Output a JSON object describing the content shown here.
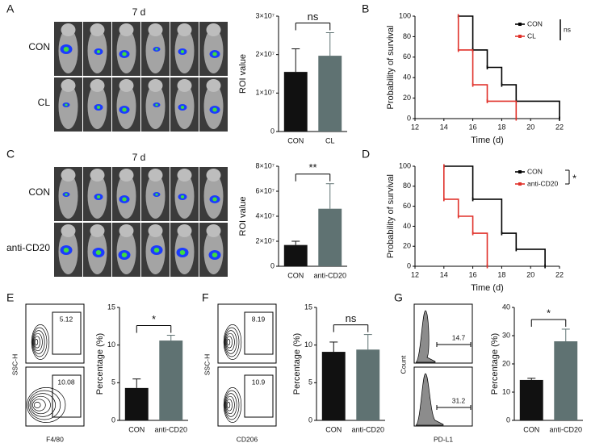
{
  "figure": {
    "panel_labels": [
      "A",
      "B",
      "C",
      "D",
      "E",
      "F",
      "G"
    ],
    "imaging": [
      {
        "time": "7 d",
        "groups": [
          "CON",
          "CL"
        ]
      },
      {
        "time": "7 d",
        "groups": [
          "CON",
          "anti-CD20"
        ]
      }
    ],
    "flow": [
      {
        "ylabel": "SSC-H",
        "xlabel": "F4/80",
        "gates": [
          5.12,
          10.08
        ]
      },
      {
        "ylabel": "SSC-H",
        "xlabel": "CD206",
        "gates": [
          8.19,
          10.9
        ]
      },
      {
        "ylabel": "Count",
        "xlabel": "PD-L1",
        "gates": [
          14.7,
          31.2
        ]
      }
    ]
  },
  "chart_data": [
    {
      "type": "bar",
      "ylabel": "ROI value",
      "categories": [
        "CON",
        "CL"
      ],
      "values": [
        15500000,
        19700000
      ],
      "errors": [
        6000000,
        6000000
      ],
      "colors": [
        "#111111",
        "#5f7272"
      ],
      "ylim": [
        0,
        30000000
      ],
      "yticks": [
        0,
        {
          "value": 10000000,
          "label": "1×10⁷"
        },
        {
          "value": 20000000,
          "label": "2×10⁷"
        },
        {
          "value": 30000000,
          "label": "3×10⁷"
        }
      ],
      "significance": "ns"
    },
    {
      "type": "step",
      "xlabel": "Time (d)",
      "ylabel": "Probability of survival",
      "xlim": [
        12,
        22
      ],
      "xticks": [
        12,
        14,
        16,
        18,
        20,
        22
      ],
      "ylim": [
        0,
        100
      ],
      "yticks": [
        0,
        20,
        40,
        60,
        80,
        100
      ],
      "series": [
        {
          "name": "CON",
          "color": "#000000",
          "x": [
            15,
            16,
            17,
            18,
            19,
            22
          ],
          "values": [
            100,
            67,
            50,
            33,
            17,
            0
          ]
        },
        {
          "name": "CL",
          "color": "#e0312a",
          "x": [
            15,
            15,
            16,
            17,
            19
          ],
          "values": [
            100,
            67,
            33,
            17,
            0
          ]
        }
      ],
      "significance": "ns"
    },
    {
      "type": "bar",
      "ylabel": "ROI value",
      "categories": [
        "CON",
        "anti-CD20"
      ],
      "values": [
        17000000,
        46000000
      ],
      "errors": [
        3000000,
        20000000
      ],
      "colors": [
        "#111111",
        "#5f7272"
      ],
      "ylim": [
        0,
        80000000
      ],
      "yticks": [
        0,
        {
          "value": 20000000,
          "label": "2×10⁷"
        },
        {
          "value": 40000000,
          "label": "4×10⁷"
        },
        {
          "value": 60000000,
          "label": "6×10⁷"
        },
        {
          "value": 80000000,
          "label": "8×10⁷"
        }
      ],
      "significance": "**"
    },
    {
      "type": "step",
      "xlabel": "Time (d)",
      "ylabel": "Probability of survival",
      "xlim": [
        12,
        22
      ],
      "xticks": [
        12,
        14,
        16,
        18,
        20,
        22
      ],
      "ylim": [
        0,
        100
      ],
      "yticks": [
        0,
        20,
        40,
        60,
        80,
        100
      ],
      "series": [
        {
          "name": "CON",
          "color": "#000000",
          "x": [
            14,
            16,
            18,
            19,
            21
          ],
          "values": [
            100,
            67,
            33,
            17,
            0
          ]
        },
        {
          "name": "anti-CD20",
          "color": "#e0312a",
          "x": [
            14,
            14,
            15,
            16,
            17
          ],
          "values": [
            100,
            67,
            50,
            33,
            0
          ]
        }
      ],
      "significance": "*"
    },
    {
      "type": "bar",
      "ylabel": "Percentage (%)",
      "categories": [
        "CON",
        "anti-CD20"
      ],
      "values": [
        4.3,
        10.6
      ],
      "errors": [
        1.2,
        0.7
      ],
      "colors": [
        "#111111",
        "#5f7272"
      ],
      "ylim": [
        0,
        15
      ],
      "yticks": [
        0,
        5,
        10,
        15
      ],
      "significance": "*"
    },
    {
      "type": "bar",
      "ylabel": "Percentage (%)",
      "categories": [
        "CON",
        "anti-CD20"
      ],
      "values": [
        9.1,
        9.4
      ],
      "errors": [
        1.3,
        2.0
      ],
      "colors": [
        "#111111",
        "#5f7272"
      ],
      "ylim": [
        0,
        15
      ],
      "yticks": [
        0,
        5,
        10,
        15
      ],
      "significance": "ns"
    },
    {
      "type": "bar",
      "ylabel": "Percentage (%)",
      "categories": [
        "CON",
        "anti-CD20"
      ],
      "values": [
        14.3,
        28
      ],
      "errors": [
        0.6,
        4.3
      ],
      "colors": [
        "#111111",
        "#5f7272"
      ],
      "ylim": [
        0,
        40
      ],
      "yticks": [
        0,
        10,
        20,
        30,
        40
      ],
      "significance": "*"
    }
  ]
}
